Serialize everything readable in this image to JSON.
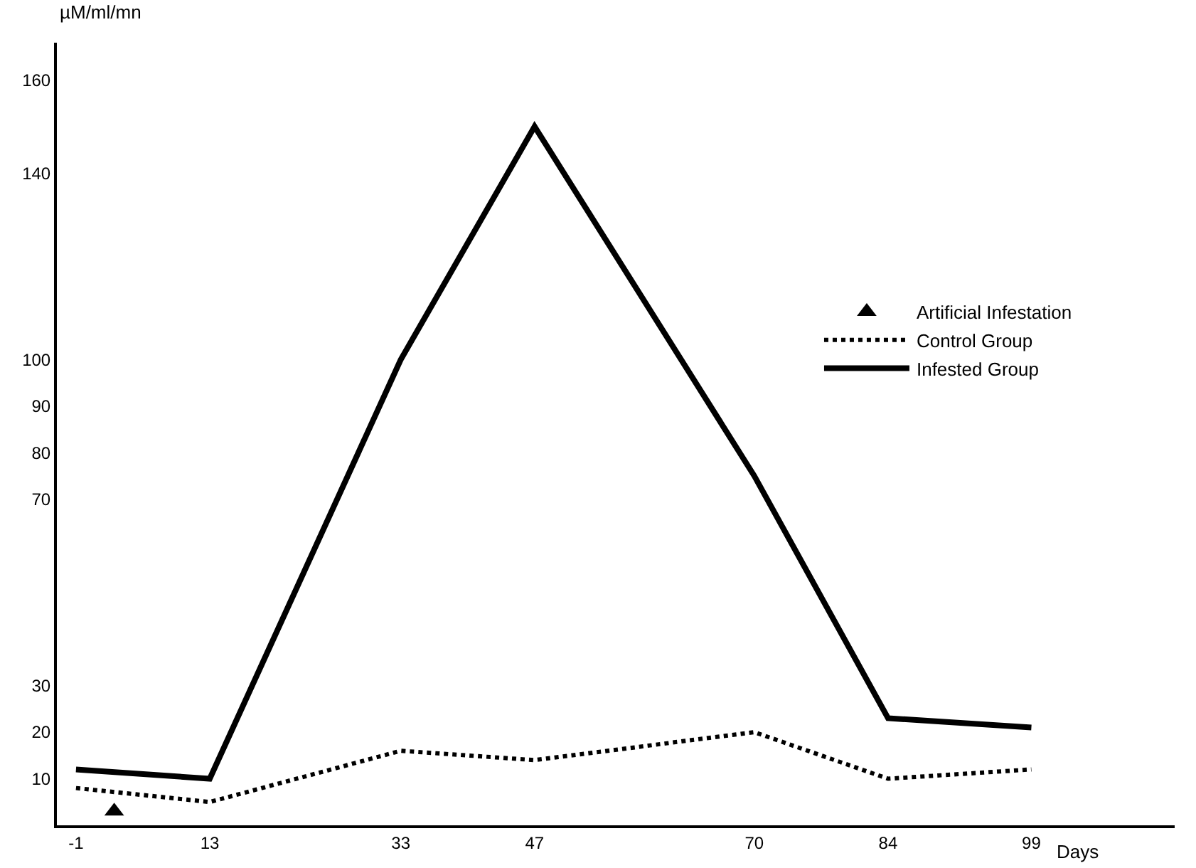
{
  "chart_data": {
    "type": "line",
    "xlabel": "Days",
    "ylabel": "µM/ml/mn",
    "x": [
      -1,
      13,
      33,
      47,
      70,
      84,
      99
    ],
    "series": [
      {
        "name": "Artificial Infestation",
        "type": "scatter",
        "marker": "triangle",
        "color": "#000000",
        "x": [
          3
        ],
        "values": [
          3
        ]
      },
      {
        "name": "Control Group",
        "color": "#000000",
        "line_style": "dotted",
        "marker": "none",
        "values": [
          8,
          5,
          16,
          14,
          20,
          10,
          12
        ]
      },
      {
        "name": "Infested Group",
        "color": "#000000",
        "line_style": "solid",
        "marker": "none",
        "values": [
          12,
          10,
          100,
          150,
          75,
          23,
          21
        ]
      }
    ],
    "xlim": [
      -3,
      114
    ],
    "xticks": [
      -1,
      13,
      33,
      47,
      70,
      84,
      99
    ],
    "ylim": [
      0,
      168
    ],
    "yticks": [
      10,
      20,
      30,
      70,
      80,
      90,
      100,
      140,
      160
    ],
    "legend": "right"
  }
}
